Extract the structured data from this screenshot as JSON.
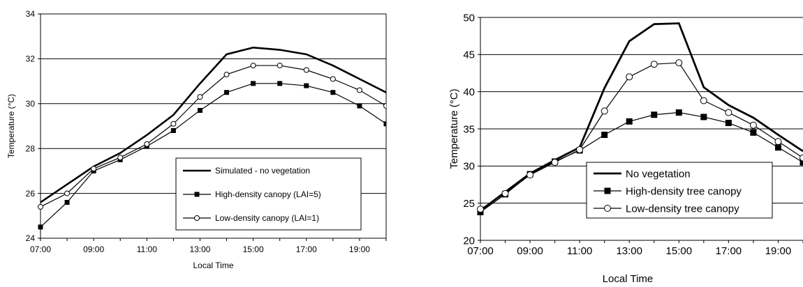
{
  "chart_data": [
    {
      "type": "line",
      "title": "",
      "xlabel": "Local Time",
      "ylabel": "Temperature (°C)",
      "ylim": [
        24,
        34
      ],
      "yticks": [
        24,
        26,
        28,
        30,
        32,
        34
      ],
      "x": [
        7,
        8,
        9,
        10,
        11,
        12,
        13,
        14,
        15,
        16,
        17,
        18,
        19,
        20
      ],
      "xlim": [
        7,
        20
      ],
      "xticks": [
        {
          "x": 7,
          "label": "07:00"
        },
        {
          "x": 9,
          "label": "09:00"
        },
        {
          "x": 11,
          "label": "11:00"
        },
        {
          "x": 13,
          "label": "13:00"
        },
        {
          "x": 15,
          "label": "15:00"
        },
        {
          "x": 17,
          "label": "17:00"
        },
        {
          "x": 19,
          "label": "19:00"
        }
      ],
      "grid": "horizontal",
      "legend_position": "bottom-right",
      "series": [
        {
          "name": "Simulated - no vegetation",
          "marker": "none",
          "values": [
            25.6,
            26.4,
            27.2,
            27.8,
            28.6,
            29.5,
            30.9,
            32.2,
            32.5,
            32.4,
            32.2,
            31.7,
            31.1,
            30.5
          ]
        },
        {
          "name": "High-density canopy (LAI=5)",
          "marker": "filled-square",
          "values": [
            24.5,
            25.6,
            27.0,
            27.5,
            28.1,
            28.8,
            29.7,
            30.5,
            30.9,
            30.9,
            30.8,
            30.5,
            29.9,
            29.1
          ]
        },
        {
          "name": "Low-density canopy (LAI=1)",
          "marker": "open-circle",
          "values": [
            25.4,
            26.0,
            27.1,
            27.6,
            28.2,
            29.1,
            30.3,
            31.3,
            31.7,
            31.7,
            31.5,
            31.1,
            30.6,
            29.9
          ]
        }
      ]
    },
    {
      "type": "line",
      "title": "",
      "xlabel": "Local Time",
      "ylabel": "Temperature (°C)",
      "ylim": [
        20,
        50
      ],
      "yticks": [
        20,
        25,
        30,
        35,
        40,
        45,
        50
      ],
      "x": [
        7,
        8,
        9,
        10,
        11,
        12,
        13,
        14,
        15,
        16,
        17,
        18,
        19,
        20
      ],
      "xlim": [
        7,
        20
      ],
      "xticks": [
        {
          "x": 7,
          "label": "07:00"
        },
        {
          "x": 9,
          "label": "09:00"
        },
        {
          "x": 11,
          "label": "11:00"
        },
        {
          "x": 13,
          "label": "13:00"
        },
        {
          "x": 15,
          "label": "15:00"
        },
        {
          "x": 17,
          "label": "17:00"
        },
        {
          "x": 19,
          "label": "19:00"
        }
      ],
      "grid": "horizontal",
      "legend_position": "bottom-right",
      "series": [
        {
          "name": "No vegetation",
          "marker": "none",
          "values": [
            24.0,
            26.5,
            29.0,
            30.8,
            32.5,
            40.5,
            46.8,
            49.1,
            49.2,
            40.6,
            38.2,
            36.5,
            34.2,
            32.0
          ]
        },
        {
          "name": "High-density tree canopy",
          "marker": "filled-square",
          "values": [
            23.8,
            26.2,
            28.9,
            30.6,
            32.1,
            34.2,
            36.0,
            36.9,
            37.2,
            36.6,
            35.8,
            34.5,
            32.5,
            30.5
          ]
        },
        {
          "name": "Low-density tree canopy",
          "marker": "open-circle",
          "values": [
            24.2,
            26.3,
            28.8,
            30.5,
            32.2,
            37.4,
            42.0,
            43.7,
            43.9,
            38.8,
            37.2,
            35.5,
            33.3,
            31.1
          ]
        }
      ]
    }
  ]
}
